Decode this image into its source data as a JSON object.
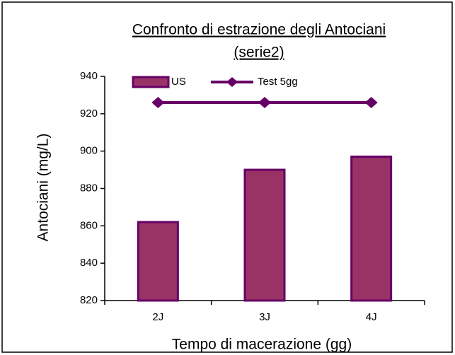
{
  "chart_data": {
    "type": "bar",
    "title": [
      "Confronto di estrazione degli Antociani",
      "(serie2)"
    ],
    "x_label": "Tempo di macerazione (gg)",
    "y_label": "Antociani (mg/L)",
    "categories": [
      "2J",
      "3J",
      "4J"
    ],
    "series": [
      {
        "name": "US",
        "type": "bar",
        "color": "#993366",
        "edge_color": "#660066",
        "values": [
          862,
          890,
          897
        ]
      },
      {
        "name": "Test 5gg",
        "type": "line",
        "color": "#660066",
        "values": [
          926,
          926,
          926
        ]
      }
    ],
    "ylim": [
      820,
      940
    ],
    "yticks": [
      820,
      840,
      860,
      880,
      900,
      920,
      940
    ],
    "legend": "top"
  }
}
